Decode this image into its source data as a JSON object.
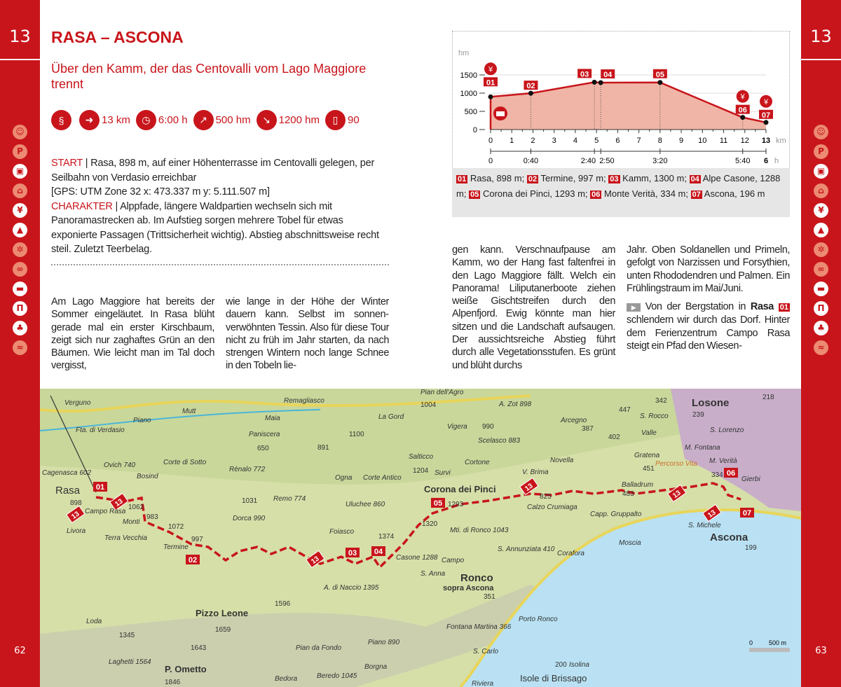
{
  "tour_number": "13",
  "pages": {
    "left": "62",
    "right": "63"
  },
  "side_icons": [
    {
      "name": "bear-icon",
      "glyph": "☺",
      "active": false
    },
    {
      "name": "parking-icon",
      "glyph": "P",
      "active": false
    },
    {
      "name": "bus-icon",
      "glyph": "▣",
      "active": true
    },
    {
      "name": "cable-car-icon",
      "glyph": "⌂",
      "active": false
    },
    {
      "name": "restaurant-icon",
      "glyph": "¥",
      "active": true
    },
    {
      "name": "summit-icon",
      "glyph": "▲",
      "active": true
    },
    {
      "name": "snowflake-icon",
      "glyph": "✲",
      "active": false
    },
    {
      "name": "bike-icon",
      "glyph": "∞",
      "active": false
    },
    {
      "name": "bed-icon",
      "glyph": "▬",
      "active": true
    },
    {
      "name": "museum-icon",
      "glyph": "Π",
      "active": true
    },
    {
      "name": "tree-icon",
      "glyph": "♣",
      "active": true
    },
    {
      "name": "swim-icon",
      "glyph": "≈",
      "active": false
    }
  ],
  "title": "RASA – ASCONA",
  "subtitle": "Über den Kamm, der das Centovalli vom Lago Maggiore trennt",
  "facts": [
    {
      "icon": "route-profile-icon",
      "glyph": "§",
      "value": ""
    },
    {
      "icon": "signpost-icon",
      "glyph": "➜",
      "value": "13 km"
    },
    {
      "icon": "clock-icon",
      "glyph": "◷",
      "value": "6:00 h"
    },
    {
      "icon": "ascent-icon",
      "glyph": "↗",
      "value": "500 hm"
    },
    {
      "icon": "descent-icon",
      "glyph": "↘",
      "value": "1200 hm"
    },
    {
      "icon": "map-pages-icon",
      "glyph": "▯",
      "value": "90"
    }
  ],
  "info": {
    "start_label": "START",
    "start_text": " | Rasa, 898 m, auf einer Höhenterrasse im Centovalli gelegen, per Seilbahn von Verdasio erreichbar",
    "gps": "[GPS: UTM Zone 32  x: 473.337 m  y: 5.111.507 m]",
    "character_label": "CHARAKTER",
    "character_text": " | Alppfade, längere Waldpartien wechseln sich mit Panoramastrecken ab. Im Aufstieg sorgen mehrere Tobel für etwas exponierte Passagen (Trittsicherheit wichtig). Abstieg abschnittsweise recht steil. Zuletzt Teerbelag."
  },
  "columns": [
    "Am Lago Maggiore hat bereits der Sommer eingeläutet. In Rasa blüht gerade mal ein erster Kirschbaum, zeigt sich nur zag­haftes Grün an den Bäumen. Wie leicht man im Tal doch vergisst,",
    "wie lange in der Höhe der Winter dauern kann. Selbst im sonnen­verwöhnten Tessin. Also für diese Tour nicht zu früh im Jahr starten, da nach strengen Wintern noch lange Schnee in den Tobeln lie-",
    "gen kann. Verschnaufpause am Kamm, wo der Hang fast faltenfrei in den Lago Maggiore fällt. Welch ein Panorama! Liliputanerboote ziehen weiße Gischtstreifen durch den Alpenfjord. Ewig könnte man hier sitzen und die Landschaft auf­saugen. Der aussichtsreiche Ab­stieg führt durch alle Vegetations­stufen. Es grünt und blüht durchs"
  ],
  "column4": {
    "para1": "Jahr. Oben Soldanellen und Pri­meln, gefolgt von Narzissen und Forsythien, unten Rhododendren und Palmen. Ein Frühlingstraum im Mai/Juni.",
    "para2_start": " Von der Bergstation in ",
    "para2_bold": "Rasa",
    "para2_wp": "01",
    "para2_rest": " schlendern wir durch das Dorf. Hinter dem Ferienzentrum Campo Rasa steigt ein Pfad den Wiesen-"
  },
  "chart_data": {
    "type": "area",
    "ylabel": "hm",
    "xlabel": "km",
    "time_label": "h",
    "xlim": [
      0,
      13
    ],
    "ylim": [
      0,
      1500
    ],
    "yticks": [
      0,
      500,
      1000,
      1500
    ],
    "xticks": [
      0,
      1,
      2,
      3,
      4,
      5,
      6,
      7,
      8,
      9,
      10,
      11,
      12,
      13
    ],
    "points": [
      {
        "id": "01",
        "km": 0,
        "elev": 898
      },
      {
        "id": "02",
        "km": 1.9,
        "elev": 997
      },
      {
        "id": "03",
        "km": 4.9,
        "elev": 1300
      },
      {
        "id": "04",
        "km": 5.2,
        "elev": 1288
      },
      {
        "id": "05",
        "km": 8,
        "elev": 1293
      },
      {
        "id": "06",
        "km": 11.9,
        "elev": 334
      },
      {
        "id": "07",
        "km": 13,
        "elev": 196
      }
    ],
    "time_ticks": [
      {
        "km": 0,
        "label": "0"
      },
      {
        "km": 1.9,
        "label": "0:40"
      },
      {
        "km": 4.9,
        "label": "2:40"
      },
      {
        "km": 5.2,
        "label": "2:50"
      },
      {
        "km": 8,
        "label": "3:20"
      },
      {
        "km": 11.9,
        "label": "5:40"
      },
      {
        "km": 13,
        "label": "6"
      }
    ],
    "restaurant_at": [
      "01",
      "06",
      "07"
    ],
    "cablecar_at": "01",
    "colors": {
      "line": "#c8151b",
      "fill": "#f0b5a6"
    },
    "grid": true
  },
  "legend": [
    {
      "id": "01",
      "text": "Rasa, 898 m;"
    },
    {
      "id": "02",
      "text": "Termine, 997 m;"
    },
    {
      "id": "03",
      "text": "Kamm, 1300 m;"
    },
    {
      "id": "04",
      "text": "Alpe Casone, 1288 m;"
    },
    {
      "id": "05",
      "text": "Corona dei Pinci, 1293 m;"
    },
    {
      "id": "06",
      "text": "Monte Verità, 334 m;"
    },
    {
      "id": "07",
      "text": "Ascona, 196 m"
    }
  ],
  "map": {
    "labels": [
      "Verguno",
      "Fta. di Verdasio",
      "Piano",
      "Mutt",
      "Remagliasco",
      "Maia",
      "Paniscera",
      "650",
      "891",
      "1100",
      "La Gord",
      "Ovich 740",
      "Cagenasca 602",
      "Bosind",
      "Corte di Sotto",
      "Rènalo 772",
      "Rasa",
      "898",
      "Campo Rasa",
      "1062",
      "Monti",
      "983",
      "1072",
      "1031",
      "Dorca 990",
      "Remo 774",
      "Uluchee 860",
      "Ogna",
      "Corte Antico",
      "Foiasco",
      "1374",
      "Livora",
      "Terra Vecchia",
      "Termine",
      "997",
      "Casone 1288",
      "A. di Naccio 1395",
      "Pizzo Leone",
      "1596",
      "1659",
      "1345",
      "Loda",
      "1643",
      "Laghetti 1564",
      "P. Ometto",
      "1846",
      "Pian da Fondo",
      "Piano 890",
      "Borgna",
      "Bedora",
      "Beredo 1045",
      "Pian dell'Agro",
      "1004",
      "A. Zot 898",
      "Vigera",
      "990",
      "Scelasco 883",
      "Salticco",
      "1204",
      "Survi",
      "Cortone",
      "Corona dei Pinci",
      "1293",
      "1320",
      "V. Brima",
      "825",
      "Calzo Crumiaga",
      "Novella",
      "Arcegno",
      "387",
      "402",
      "342",
      "447",
      "S. Rocco",
      "Losone",
      "239",
      "S. Lorenzo",
      "218",
      "Valle",
      "M. Fontana",
      "Gratena",
      "451",
      "Percorso Vita",
      "M. Verità",
      "334",
      "Gierbi",
      "Balladrum",
      "483",
      "Capp. Gruppalto",
      "Mti. di Ronco 1043",
      "Campo",
      "S. Anna",
      "S. Annunziata 410",
      "Corafora",
      "Moscia",
      "S. Michele",
      "Ascona",
      "199",
      "Ronco",
      "sopra Ascona",
      "351",
      "Porto Ronco",
      "Fontana Martina 366",
      "S. Carlo",
      "200",
      "Isolina",
      "Isole di Brissago",
      "Riviera"
    ],
    "waypoints": [
      "01",
      "02",
      "03",
      "04",
      "05",
      "06",
      "07"
    ],
    "route_badge": "13",
    "scale_labels": [
      "0",
      "500 m"
    ]
  }
}
